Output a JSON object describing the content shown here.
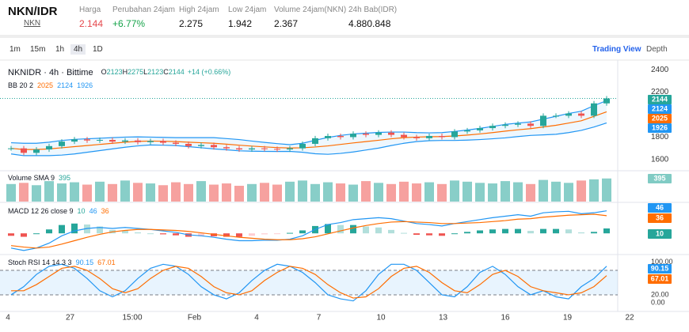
{
  "header": {
    "pair": "NKN/IDR",
    "token": "NKN",
    "stats": [
      {
        "label": "Harga",
        "value": "2.144"
      },
      {
        "label": "Perubahan 24jam",
        "value": "+6.77%"
      },
      {
        "label": "High 24jam",
        "value": "2.275"
      },
      {
        "label": "Low 24jam",
        "value": "1.942"
      },
      {
        "label": "Volume 24jam(NKN)",
        "value": "2.367"
      },
      {
        "label": "24h Bab(IDR)",
        "value": "4.880.848"
      }
    ]
  },
  "toolbar": {
    "intervals": [
      "1m",
      "15m",
      "1h",
      "4h",
      "1D"
    ],
    "tabs": [
      "Trading View",
      "Depth"
    ]
  },
  "chart_data": {
    "type": "candlestick",
    "title": "NKNIDR · 4h · Bittime",
    "ohlc": [
      {
        "label": "O",
        "value": 2123
      },
      {
        "label": "H",
        "value": 2275
      },
      {
        "label": "L",
        "value": 2123
      },
      {
        "label": "C",
        "value": 2144
      }
    ],
    "change": "+14 (+0.66%)",
    "bb_label": "BB 20 2",
    "x_labels": [
      "4",
      "27",
      "15:00",
      "Feb",
      "4",
      "7",
      "10",
      "13",
      "16",
      "19",
      "22"
    ],
    "ylim": [
      1550,
      2450
    ],
    "yticks": [
      1600,
      1800,
      2200,
      2400
    ],
    "close": [
      1700,
      1660,
      1690,
      1720,
      1760,
      1780,
      1770,
      1775,
      1760,
      1770,
      1755,
      1765,
      1750,
      1740,
      1720,
      1730,
      1710,
      1700,
      1690,
      1700,
      1695,
      1690,
      1700,
      1740,
      1790,
      1810,
      1800,
      1830,
      1820,
      1840,
      1820,
      1800,
      1790,
      1810,
      1800,
      1850,
      1860,
      1880,
      1900,
      1910,
      1920,
      1900,
      1990,
      1990,
      2010,
      1990,
      2100,
      2144
    ],
    "bb_mid": [
      1700,
      1690,
      1690,
      1695,
      1705,
      1715,
      1725,
      1735,
      1745,
      1755,
      1762,
      1765,
      1763,
      1760,
      1755,
      1750,
      1745,
      1737,
      1728,
      1720,
      1713,
      1707,
      1703,
      1705,
      1712,
      1722,
      1735,
      1748,
      1760,
      1772,
      1785,
      1795,
      1800,
      1803,
      1805,
      1810,
      1818,
      1828,
      1840,
      1853,
      1865,
      1875,
      1890,
      1905,
      1925,
      1945,
      1985,
      2025
    ],
    "bb_upper": [
      1750,
      1745,
      1745,
      1755,
      1770,
      1780,
      1785,
      1790,
      1795,
      1800,
      1802,
      1800,
      1798,
      1795,
      1795,
      1795,
      1795,
      1787,
      1778,
      1765,
      1753,
      1742,
      1733,
      1745,
      1772,
      1797,
      1815,
      1828,
      1835,
      1842,
      1845,
      1845,
      1840,
      1838,
      1840,
      1850,
      1863,
      1878,
      1895,
      1913,
      1925,
      1935,
      1960,
      1985,
      2010,
      2030,
      2080,
      2124
    ],
    "bb_lower": [
      1650,
      1635,
      1635,
      1635,
      1640,
      1650,
      1665,
      1680,
      1695,
      1710,
      1722,
      1730,
      1728,
      1725,
      1715,
      1705,
      1695,
      1687,
      1678,
      1675,
      1673,
      1672,
      1673,
      1665,
      1652,
      1647,
      1655,
      1668,
      1685,
      1702,
      1725,
      1745,
      1760,
      1768,
      1770,
      1770,
      1773,
      1778,
      1785,
      1793,
      1805,
      1815,
      1820,
      1825,
      1840,
      1860,
      1890,
      1926
    ],
    "up_color": "#26a69a",
    "down_color": "#ef5350",
    "volume": {
      "label": "Volume SMA 9",
      "sma": 395,
      "ylim": [
        0,
        500
      ],
      "values": [
        300,
        320,
        280,
        350,
        310,
        330,
        290,
        340,
        300,
        360,
        320,
        310,
        280,
        330,
        300,
        350,
        290,
        310,
        270,
        300,
        320,
        290,
        340,
        360,
        300,
        330,
        310,
        290,
        350,
        320,
        300,
        340,
        310,
        330,
        300,
        360,
        340,
        320,
        310,
        350,
        330,
        300,
        370,
        340,
        320,
        360,
        380,
        395
      ]
    },
    "macd": {
      "label": "MACD 12 26 close 9",
      "ylim": [
        -40,
        60
      ],
      "line": [
        -30,
        -35,
        -30,
        -20,
        -5,
        5,
        10,
        12,
        10,
        12,
        10,
        8,
        5,
        2,
        -3,
        -5,
        -8,
        -12,
        -15,
        -15,
        -14,
        -14,
        -12,
        -5,
        8,
        18,
        22,
        28,
        30,
        32,
        30,
        25,
        20,
        18,
        15,
        20,
        24,
        28,
        32,
        35,
        38,
        35,
        42,
        44,
        45,
        40,
        42,
        46
      ],
      "signal": [
        -25,
        -28,
        -30,
        -28,
        -22,
        -15,
        -8,
        -2,
        3,
        6,
        8,
        8,
        7,
        6,
        4,
        1,
        -2,
        -5,
        -8,
        -10,
        -12,
        -13,
        -13,
        -11,
        -7,
        -1,
        5,
        11,
        16,
        20,
        23,
        24,
        23,
        22,
        20,
        20,
        21,
        22,
        24,
        26,
        29,
        30,
        33,
        35,
        37,
        38,
        39,
        36
      ],
      "hist": [
        -5,
        -7,
        0,
        8,
        17,
        20,
        18,
        14,
        7,
        6,
        2,
        0,
        -2,
        -4,
        -7,
        -6,
        -6,
        -7,
        -7,
        -5,
        -2,
        -1,
        1,
        6,
        15,
        19,
        17,
        17,
        14,
        12,
        7,
        1,
        -3,
        -4,
        -5,
        0,
        3,
        6,
        8,
        9,
        9,
        5,
        9,
        9,
        8,
        2,
        3,
        10
      ]
    },
    "stoch": {
      "label": "Stoch RSI 14 14 3 3",
      "ylim": [
        -17,
        115
      ],
      "yticks": [
        {
          "value": 0,
          "label": "0.00"
        },
        {
          "value": 20,
          "label": "20.00"
        },
        {
          "value": 80,
          "label": "80.00"
        },
        {
          "value": 100,
          "label": "100.00"
        }
      ],
      "k": [
        20,
        40,
        70,
        90,
        95,
        85,
        60,
        30,
        15,
        30,
        60,
        85,
        95,
        90,
        70,
        40,
        20,
        10,
        25,
        55,
        80,
        95,
        90,
        75,
        50,
        20,
        10,
        5,
        30,
        70,
        95,
        95,
        80,
        50,
        20,
        15,
        40,
        75,
        90,
        70,
        40,
        20,
        30,
        15,
        10,
        40,
        60,
        90.15
      ],
      "d": [
        30,
        30,
        45,
        65,
        85,
        90,
        80,
        60,
        35,
        25,
        35,
        60,
        80,
        90,
        85,
        65,
        40,
        25,
        20,
        30,
        55,
        75,
        90,
        85,
        70,
        45,
        25,
        12,
        15,
        35,
        65,
        85,
        90,
        75,
        50,
        30,
        25,
        45,
        70,
        80,
        65,
        40,
        30,
        25,
        20,
        25,
        40,
        67.01
      ]
    }
  }
}
